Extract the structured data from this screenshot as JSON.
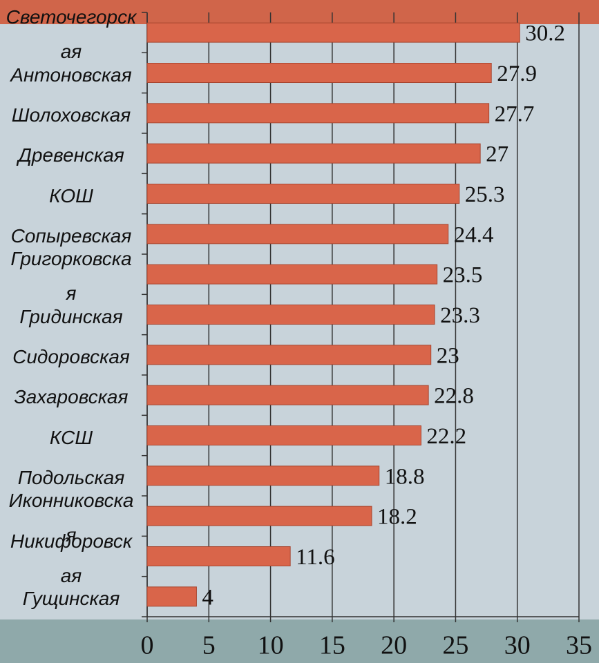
{
  "chart_data": {
    "type": "barh",
    "categories": [
      "Светочегорская",
      "Антоновская",
      "Шолоховская",
      "Древенская",
      "КОШ",
      "Сопыревская",
      "Григорковская",
      "Гридинская",
      "Сидоровская",
      "Захаровская",
      "КСШ",
      "Подольская",
      "Иконниковская",
      "Никифоровская",
      "Гущинская"
    ],
    "values": [
      30.2,
      27.9,
      27.7,
      27,
      25.3,
      24.4,
      23.5,
      23.3,
      23,
      22.8,
      22.2,
      18.8,
      18.2,
      11.6,
      4
    ],
    "color": "#d9654a",
    "xlim": [
      0,
      35
    ],
    "xticks": [
      0,
      5,
      10,
      15,
      20,
      25,
      30,
      35
    ],
    "grid": true
  }
}
